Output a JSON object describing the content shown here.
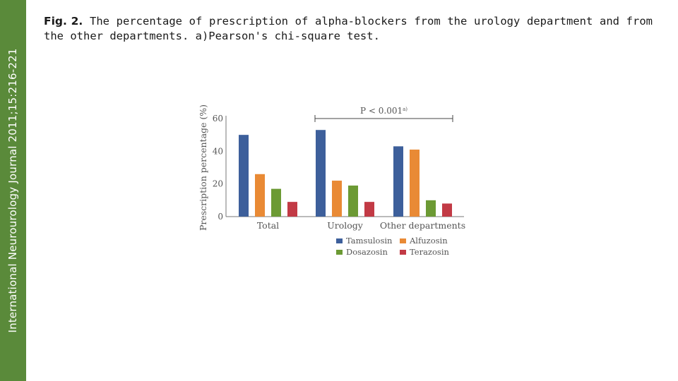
{
  "sidebar": {
    "text": "International Neurourology Journal 2011;15:216-221",
    "color": "#5a8a3a"
  },
  "caption": {
    "label": "Fig. 2.",
    "text": "The percentage of prescription of alpha-blockers from the urology department and from the other departments. a)Pearson's chi-square test."
  },
  "chart_data": {
    "type": "bar",
    "categories": [
      "Total",
      "Urology",
      "Other departments"
    ],
    "series": [
      {
        "name": "Tamsulosin",
        "color": "#3d5f9b",
        "values": [
          50,
          53,
          43
        ]
      },
      {
        "name": "Alfuzosin",
        "color": "#e98a35",
        "values": [
          26,
          22,
          41
        ]
      },
      {
        "name": "Dosazosin",
        "color": "#6c9a34",
        "values": [
          17,
          19,
          10
        ]
      },
      {
        "name": "Terazosin",
        "color": "#c23a45",
        "values": [
          9,
          9,
          8
        ]
      }
    ],
    "ylabel": "Prescription percentage (%)",
    "yticks": [
      0,
      20,
      40,
      60
    ],
    "ylim": [
      0,
      60
    ],
    "annotation": {
      "text": "P < 0.001",
      "superscript": "a)"
    }
  }
}
